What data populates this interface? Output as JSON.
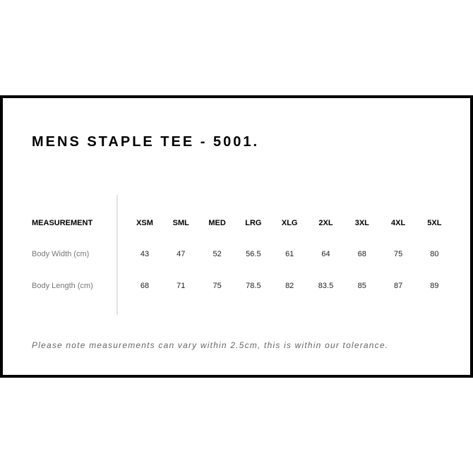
{
  "title": "MENS STAPLE TEE - 5001.",
  "table": {
    "header": {
      "label": "MEASUREMENT",
      "sizes": [
        "XSM",
        "SML",
        "MED",
        "LRG",
        "XLG",
        "2XL",
        "3XL",
        "4XL",
        "5XL"
      ]
    },
    "rows": [
      {
        "label": "Body Width (cm)",
        "values": [
          "43",
          "47",
          "52",
          "56.5",
          "61",
          "64",
          "68",
          "75",
          "80"
        ]
      },
      {
        "label": "Body Length (cm)",
        "values": [
          "68",
          "71",
          "75",
          "78.5",
          "82",
          "83.5",
          "85",
          "87",
          "89"
        ]
      }
    ]
  },
  "note": "Please note measurements can vary within 2.5cm, this is within our tolerance."
}
